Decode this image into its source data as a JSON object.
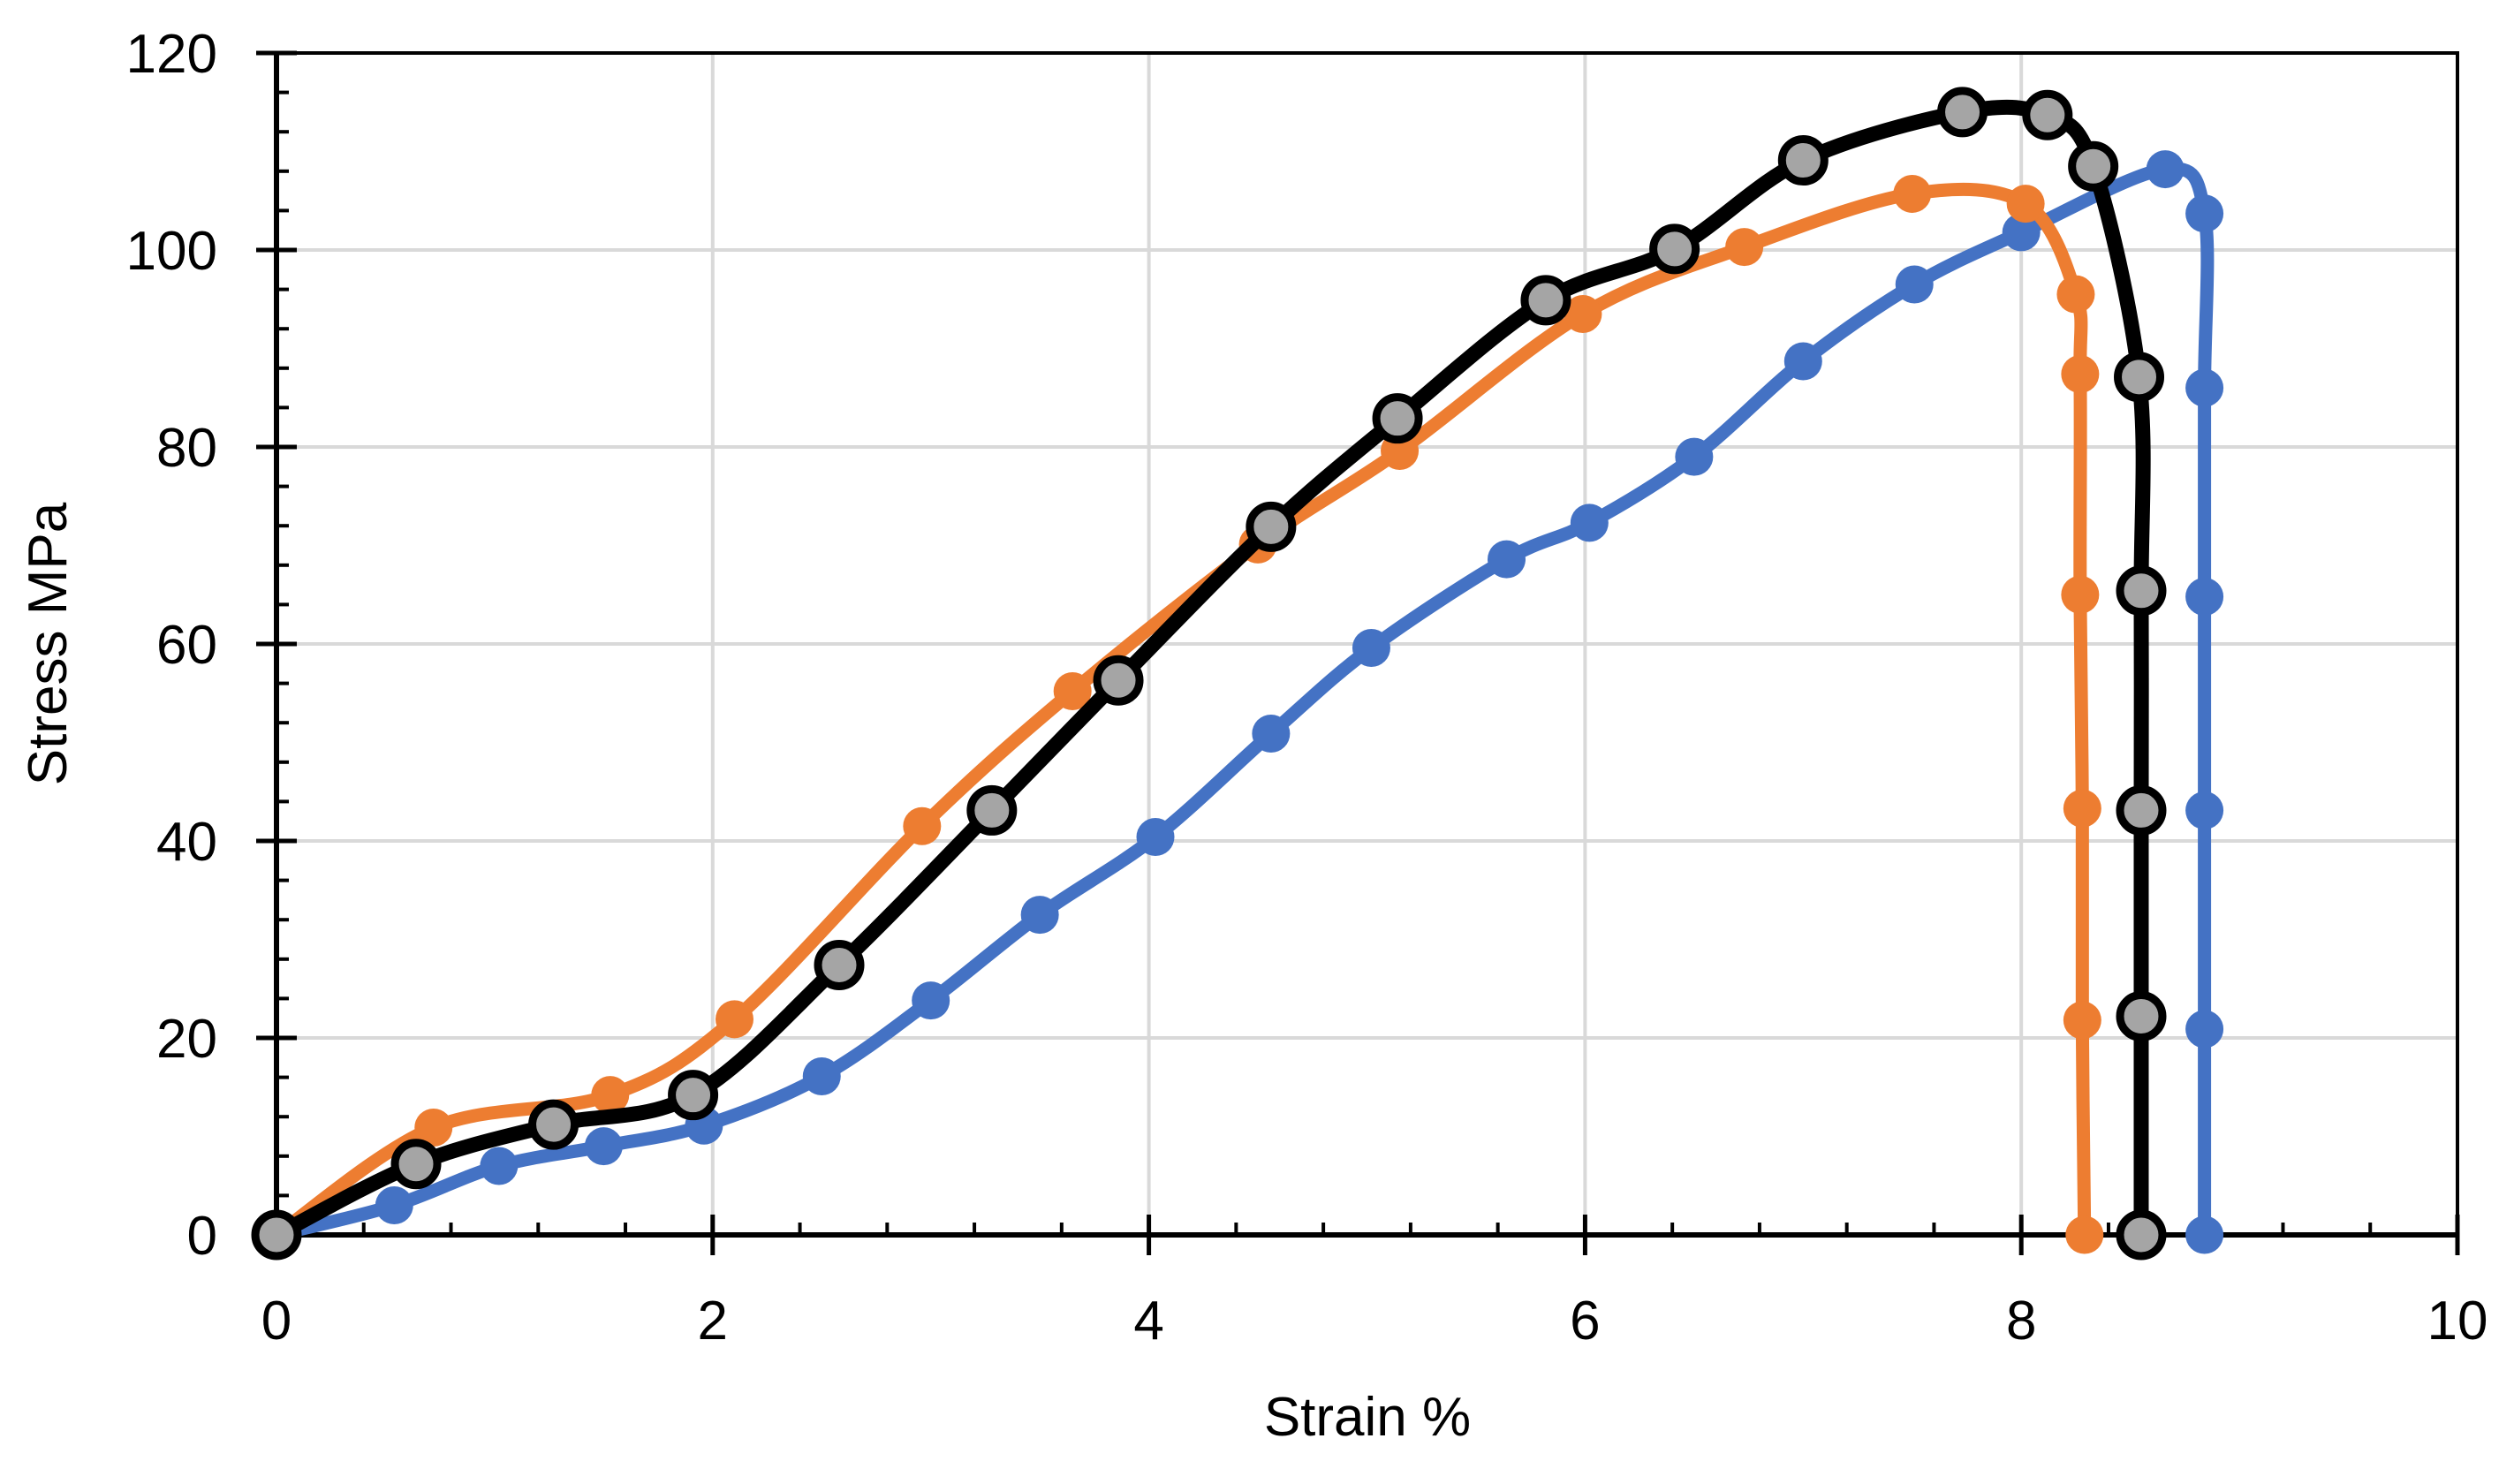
{
  "chart_data": {
    "type": "line",
    "title": "",
    "xlabel": "Strain %",
    "ylabel": "Stress MPa",
    "xlim": [
      0,
      10
    ],
    "ylim": [
      0,
      120
    ],
    "x_tick_labels": [
      "0",
      "2",
      "4",
      "6",
      "8",
      "10"
    ],
    "y_tick_labels": [
      "0",
      "20",
      "40",
      "60",
      "80",
      "100",
      "120"
    ],
    "x_tick_values": [
      0,
      2,
      4,
      6,
      8,
      10
    ],
    "y_tick_values": [
      0,
      20,
      40,
      60,
      80,
      100,
      120
    ],
    "x_minor_step": 0.4,
    "y_minor_step": 4,
    "grid": true,
    "legend_position": "none",
    "gridline_color": "#D9D9D9",
    "axis_color": "#000000",
    "series": [
      {
        "name": "blue-series",
        "line_color": "#4472C4",
        "marker_color": "#4472C4",
        "marker_outline": "#4472C4",
        "points": [
          [
            0,
            0
          ],
          [
            0.54,
            3.0
          ],
          [
            1.02,
            7.0
          ],
          [
            1.5,
            9.0
          ],
          [
            1.96,
            11.1
          ],
          [
            2.5,
            16.1
          ],
          [
            3.0,
            23.8
          ],
          [
            3.5,
            32.5
          ],
          [
            4.03,
            40.4
          ],
          [
            4.56,
            50.9
          ],
          [
            5.02,
            59.6
          ],
          [
            5.64,
            68.6
          ],
          [
            6.02,
            72.3
          ],
          [
            6.5,
            79.0
          ],
          [
            7.0,
            88.7
          ],
          [
            7.51,
            96.5
          ],
          [
            8.0,
            101.8
          ],
          [
            8.66,
            108.2
          ],
          [
            8.84,
            103.7
          ],
          [
            8.84,
            86.0
          ],
          [
            8.84,
            64.8
          ],
          [
            8.84,
            43.1
          ],
          [
            8.84,
            20.9
          ],
          [
            8.84,
            0
          ]
        ]
      },
      {
        "name": "orange-series",
        "line_color": "#ED7D31",
        "marker_color": "#ED7D31",
        "marker_outline": "#ED7D31",
        "points": [
          [
            0,
            0
          ],
          [
            0.72,
            10.9
          ],
          [
            1.53,
            14.2
          ],
          [
            2.1,
            21.9
          ],
          [
            2.96,
            41.5
          ],
          [
            3.65,
            55.2
          ],
          [
            4.5,
            70.1
          ],
          [
            5.15,
            79.6
          ],
          [
            5.99,
            93.5
          ],
          [
            6.73,
            100.3
          ],
          [
            7.5,
            105.7
          ],
          [
            8.02,
            104.7
          ],
          [
            8.25,
            95.5
          ],
          [
            8.27,
            87.4
          ],
          [
            8.27,
            65.0
          ],
          [
            8.28,
            43.3
          ],
          [
            8.28,
            21.8
          ],
          [
            8.29,
            0
          ]
        ]
      },
      {
        "name": "black-series",
        "line_color": "#000000",
        "marker_color": "#A5A5A5",
        "marker_outline": "#000000",
        "points": [
          [
            0,
            0
          ],
          [
            0.64,
            7.2
          ],
          [
            1.27,
            11.2
          ],
          [
            1.91,
            14.2
          ],
          [
            2.58,
            27.4
          ],
          [
            3.28,
            43.1
          ],
          [
            3.86,
            56.3
          ],
          [
            4.56,
            71.9
          ],
          [
            5.14,
            82.9
          ],
          [
            5.82,
            94.9
          ],
          [
            6.41,
            100.1
          ],
          [
            7.0,
            109.1
          ],
          [
            7.73,
            114.0
          ],
          [
            8.12,
            113.7
          ],
          [
            8.33,
            108.5
          ],
          [
            8.54,
            87.1
          ],
          [
            8.55,
            65.4
          ],
          [
            8.55,
            43.1
          ],
          [
            8.55,
            22.2
          ],
          [
            8.55,
            0
          ]
        ]
      }
    ]
  }
}
